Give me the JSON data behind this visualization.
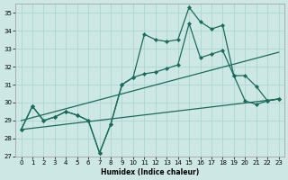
{
  "xlabel": "Humidex (Indice chaleur)",
  "bg_color": "#cde8e4",
  "grid_color": "#b0d8d4",
  "line_color": "#1a6b5a",
  "xlim": [
    -0.5,
    23.5
  ],
  "ylim": [
    27,
    35.5
  ],
  "yticks": [
    27,
    28,
    29,
    30,
    31,
    32,
    33,
    34,
    35
  ],
  "xticks": [
    0,
    1,
    2,
    3,
    4,
    5,
    6,
    7,
    8,
    9,
    10,
    11,
    12,
    13,
    14,
    15,
    16,
    17,
    18,
    19,
    20,
    21,
    22,
    23
  ],
  "lines": [
    {
      "x": [
        0,
        1,
        2,
        3,
        4,
        5,
        6,
        7,
        8,
        9,
        10,
        11,
        12,
        13,
        14,
        15,
        16,
        17,
        18,
        19,
        20,
        21,
        22,
        23
      ],
      "y": [
        28.5,
        29.8,
        29.0,
        29.2,
        29.5,
        29.3,
        29.0,
        27.2,
        28.8,
        31.0,
        31.4,
        33.8,
        33.5,
        33.4,
        33.5,
        35.3,
        34.5,
        34.1,
        34.3,
        31.5,
        30.1,
        29.9,
        30.1,
        30.2
      ],
      "marker": true
    },
    {
      "x": [
        0,
        1,
        2,
        3,
        4,
        5,
        6,
        7,
        8,
        9,
        10,
        11,
        12,
        13,
        14,
        15,
        16,
        17,
        18,
        19,
        20,
        21,
        22,
        23
      ],
      "y": [
        28.5,
        29.8,
        29.0,
        29.2,
        29.5,
        29.3,
        29.0,
        27.2,
        28.8,
        31.0,
        31.4,
        31.6,
        31.7,
        31.9,
        32.1,
        34.4,
        32.5,
        32.7,
        32.9,
        31.5,
        31.5,
        30.9,
        30.1,
        30.2
      ],
      "marker": true
    },
    {
      "x": [
        0,
        23
      ],
      "y": [
        29.0,
        32.8
      ],
      "marker": false
    },
    {
      "x": [
        0,
        23
      ],
      "y": [
        28.5,
        30.2
      ],
      "marker": false
    }
  ]
}
